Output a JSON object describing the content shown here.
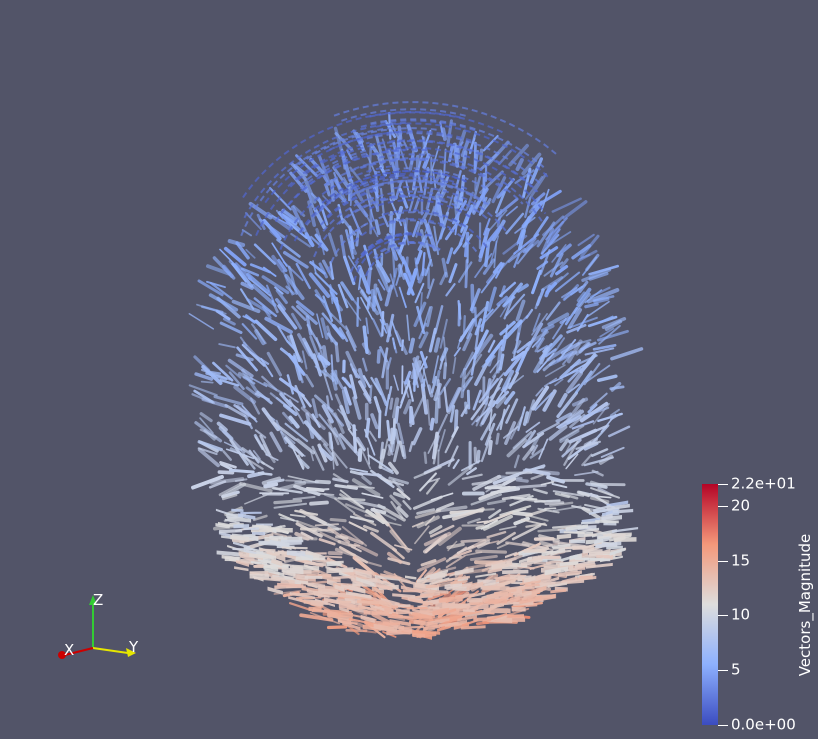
{
  "scene": {
    "background": "#525468",
    "object": "vector-glyph-field"
  },
  "orientation_axes": {
    "x_label": "X",
    "y_label": "Y",
    "z_label": "Z",
    "x_color": "#cc0000",
    "y_color": "#e6e600",
    "z_color": "#33cc33"
  },
  "colorbar": {
    "title": "Vectors_Magnitude",
    "min": 0,
    "max": 22,
    "colormap": [
      "#3b4cc0",
      "#8db0fe",
      "#dddddd",
      "#f4987a",
      "#b40426"
    ],
    "ticks": [
      {
        "label": "2.2e+01",
        "value": 22
      },
      {
        "label": "20",
        "value": 20
      },
      {
        "label": "15",
        "value": 15
      },
      {
        "label": "10",
        "value": 10
      },
      {
        "label": "5",
        "value": 5
      },
      {
        "label": "0.0e+00",
        "value": 0
      }
    ]
  }
}
